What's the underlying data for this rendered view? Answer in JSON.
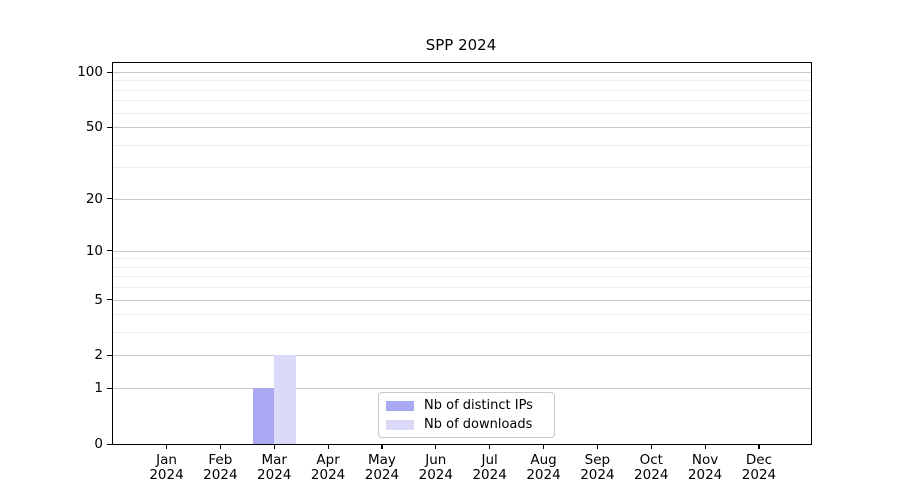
{
  "figure": {
    "background": "#ffffff"
  },
  "chart_data": {
    "type": "bar",
    "title": "SPP 2024",
    "categories": [
      "Jan",
      "Feb",
      "Mar",
      "Apr",
      "May",
      "Jun",
      "Jul",
      "Aug",
      "Sep",
      "Oct",
      "Nov",
      "Dec"
    ],
    "year_label": "2024",
    "series": [
      {
        "name": "Nb of distinct IPs",
        "color": "#a9a9f3",
        "values": [
          0,
          0,
          1,
          0,
          0,
          0,
          0,
          0,
          0,
          0,
          0,
          0
        ]
      },
      {
        "name": "Nb of downloads",
        "color": "#dadaf8",
        "values": [
          0,
          0,
          2,
          0,
          0,
          0,
          0,
          0,
          0,
          0,
          0,
          0
        ]
      }
    ],
    "xlabel": "",
    "ylabel": "",
    "yscale": "log1p",
    "ylim": [
      0,
      112
    ],
    "yticks": [
      0,
      1,
      2,
      5,
      10,
      20,
      50,
      100
    ],
    "yticks_minor": [
      3,
      4,
      6,
      7,
      8,
      9,
      30,
      40,
      60,
      70,
      80,
      90
    ],
    "grid": "horizontal",
    "legend_position": "inside-bottom-center"
  },
  "colors": {
    "grid_major": "#c9c9c9",
    "grid_minor": "#ededed",
    "spine": "#000000",
    "legend_border": "#c8c8c8"
  }
}
